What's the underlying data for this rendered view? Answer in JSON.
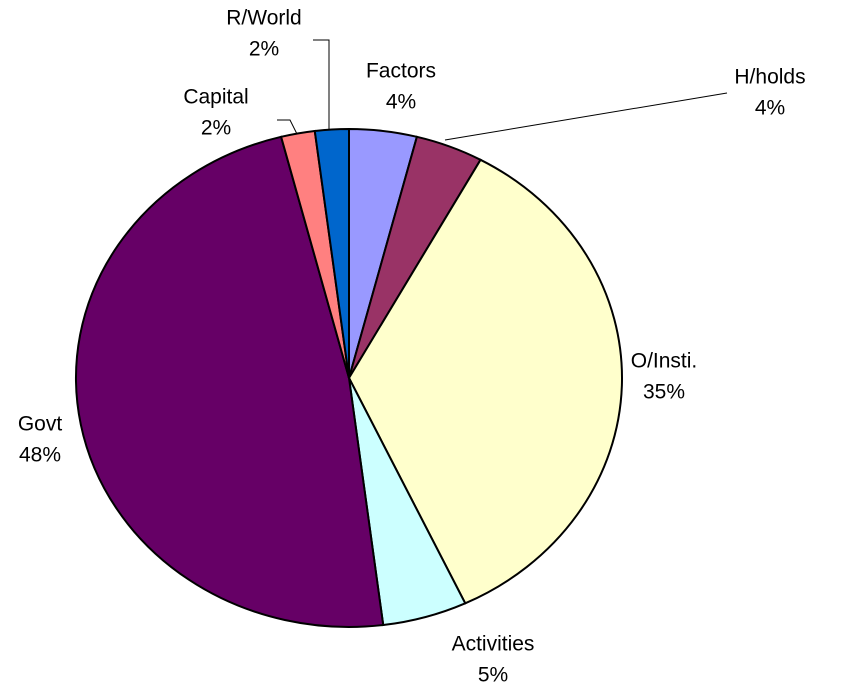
{
  "chart_data": {
    "type": "pie",
    "categories": [
      "Factors",
      "H/holds",
      "O/Insti.",
      "Activities",
      "Govt",
      "Capital",
      "R/World"
    ],
    "values": [
      4,
      4,
      35,
      5,
      48,
      2,
      2
    ],
    "value_labels": [
      "4%",
      "4%",
      "35%",
      "5%",
      "48%",
      "2%",
      "2%"
    ],
    "colors": [
      "#9999ff",
      "#993366",
      "#ffffcc",
      "#ccffff",
      "#660066",
      "#ff8080",
      "#0066cc"
    ]
  }
}
